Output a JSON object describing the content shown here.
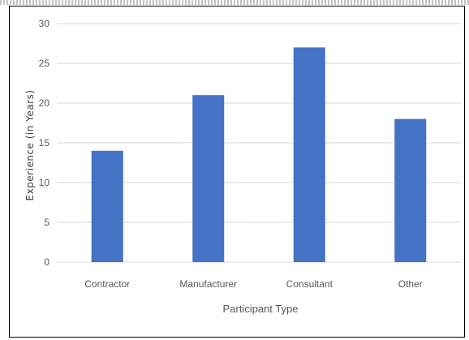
{
  "chart_data": {
    "type": "bar",
    "title": "",
    "categories": [
      "Contractor",
      "Manufacturer",
      "Consultant",
      "Other"
    ],
    "values": [
      14,
      21,
      27,
      18
    ],
    "xlabel": "Participant Type",
    "ylabel": "Experience (in Years)",
    "ylim": [
      0,
      30
    ],
    "yticks": [
      "0",
      "5",
      "10",
      "15",
      "20",
      "25",
      "30"
    ],
    "grid": true,
    "bar_color": "#4472C4",
    "grid_color": "#d9d9d9"
  }
}
